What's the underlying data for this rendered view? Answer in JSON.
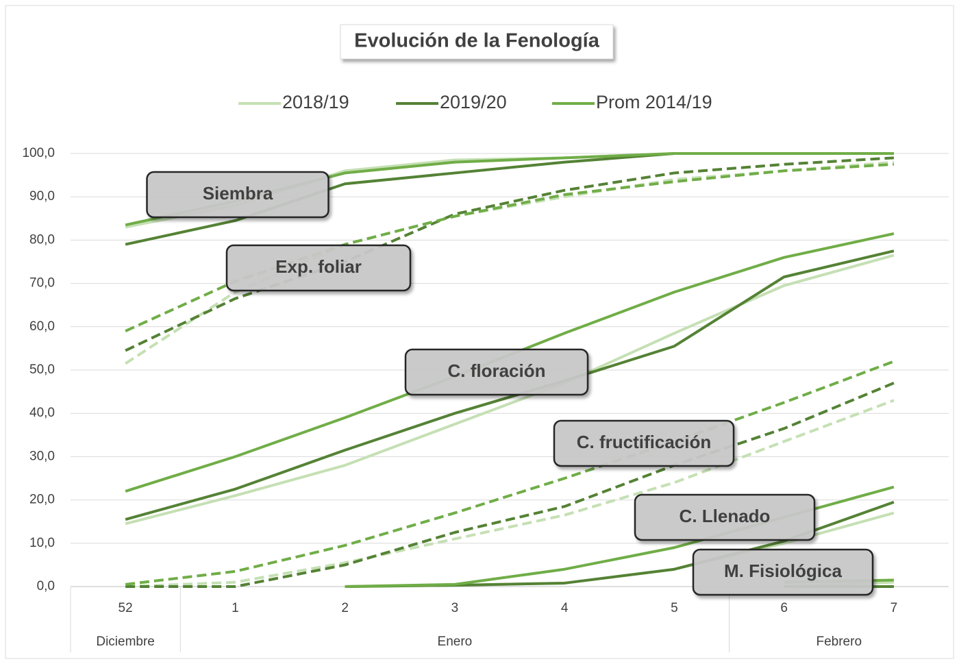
{
  "chart_data": {
    "type": "line",
    "title": "Evolución de la Fenología",
    "categories": [
      "52",
      "1",
      "2",
      "3",
      "4",
      "5",
      "6",
      "7"
    ],
    "groups": [
      {
        "label": "Diciembre",
        "count": 1
      },
      {
        "label": "Enero",
        "count": 5
      },
      {
        "label": "Febrero",
        "count": 2
      }
    ],
    "ylim": [
      0,
      100
    ],
    "yticks": [
      {
        "value": 0,
        "label": "0,0"
      },
      {
        "value": 10,
        "label": "10,0"
      },
      {
        "value": 20,
        "label": "20,0"
      },
      {
        "value": 30,
        "label": "30,0"
      },
      {
        "value": 40,
        "label": "40,0"
      },
      {
        "value": 50,
        "label": "50,0"
      },
      {
        "value": 60,
        "label": "60,0"
      },
      {
        "value": 70,
        "label": "70,0"
      },
      {
        "value": 80,
        "label": "80,0"
      },
      {
        "value": 90,
        "label": "90,0"
      },
      {
        "value": 100,
        "label": "100,0"
      }
    ],
    "grid": true,
    "series": [
      {
        "name": "2018/19",
        "color": "#c5e0b4"
      },
      {
        "name": "2019/20",
        "color": "#548235"
      },
      {
        "name": "Prom 2014/19",
        "color": "#70ad47"
      }
    ],
    "phases": [
      {
        "label": "Siembra",
        "dashed": false,
        "values": [
          [
            83,
            88,
            96,
            98.5,
            99,
            100,
            100,
            100
          ],
          [
            79,
            84.5,
            93,
            95.5,
            98,
            100,
            100,
            100
          ],
          [
            83.5,
            89,
            95.5,
            98,
            99,
            100,
            100,
            100
          ]
        ]
      },
      {
        "label": "Exp. foliar",
        "dashed": true,
        "values": [
          [
            51.5,
            68,
            79,
            85.5,
            90,
            94,
            96,
            98
          ],
          [
            54.5,
            66.5,
            75,
            86,
            91.5,
            95.5,
            97.5,
            99
          ],
          [
            59,
            70.5,
            79,
            85.5,
            90.5,
            93.5,
            96,
            97.5
          ]
        ]
      },
      {
        "label": "C. floración",
        "dashed": false,
        "values": [
          [
            14.5,
            21,
            28,
            37.5,
            47,
            58.5,
            69.5,
            76.5
          ],
          [
            15.5,
            22.5,
            31.5,
            40,
            47.5,
            55.5,
            71.5,
            77.5
          ],
          [
            22,
            30,
            39,
            48.5,
            58.5,
            68,
            76,
            81.5
          ]
        ]
      },
      {
        "label": "C. fructificación",
        "dashed": true,
        "values": [
          [
            0,
            1,
            5.5,
            11,
            16.5,
            24,
            33.5,
            43
          ],
          [
            0,
            0,
            5,
            12.5,
            18.5,
            28,
            36.5,
            47
          ],
          [
            0.5,
            3.5,
            9.5,
            17,
            25,
            33.5,
            42.5,
            52
          ]
        ]
      },
      {
        "label": "C. Llenado",
        "dashed": false,
        "values": [
          [
            null,
            null,
            0,
            0.3,
            0.8,
            4,
            10,
            17
          ],
          [
            null,
            null,
            0,
            0.3,
            0.8,
            4,
            10.5,
            19.5
          ],
          [
            null,
            null,
            0,
            0.5,
            4,
            9,
            16,
            23
          ]
        ]
      },
      {
        "label": "M. Fisiológica",
        "dashed": false,
        "values": [
          [
            null,
            null,
            null,
            null,
            null,
            null,
            0,
            1
          ],
          [
            null,
            null,
            null,
            null,
            null,
            null,
            0,
            0
          ],
          [
            null,
            null,
            null,
            null,
            null,
            null,
            1,
            1.5
          ]
        ]
      }
    ]
  }
}
